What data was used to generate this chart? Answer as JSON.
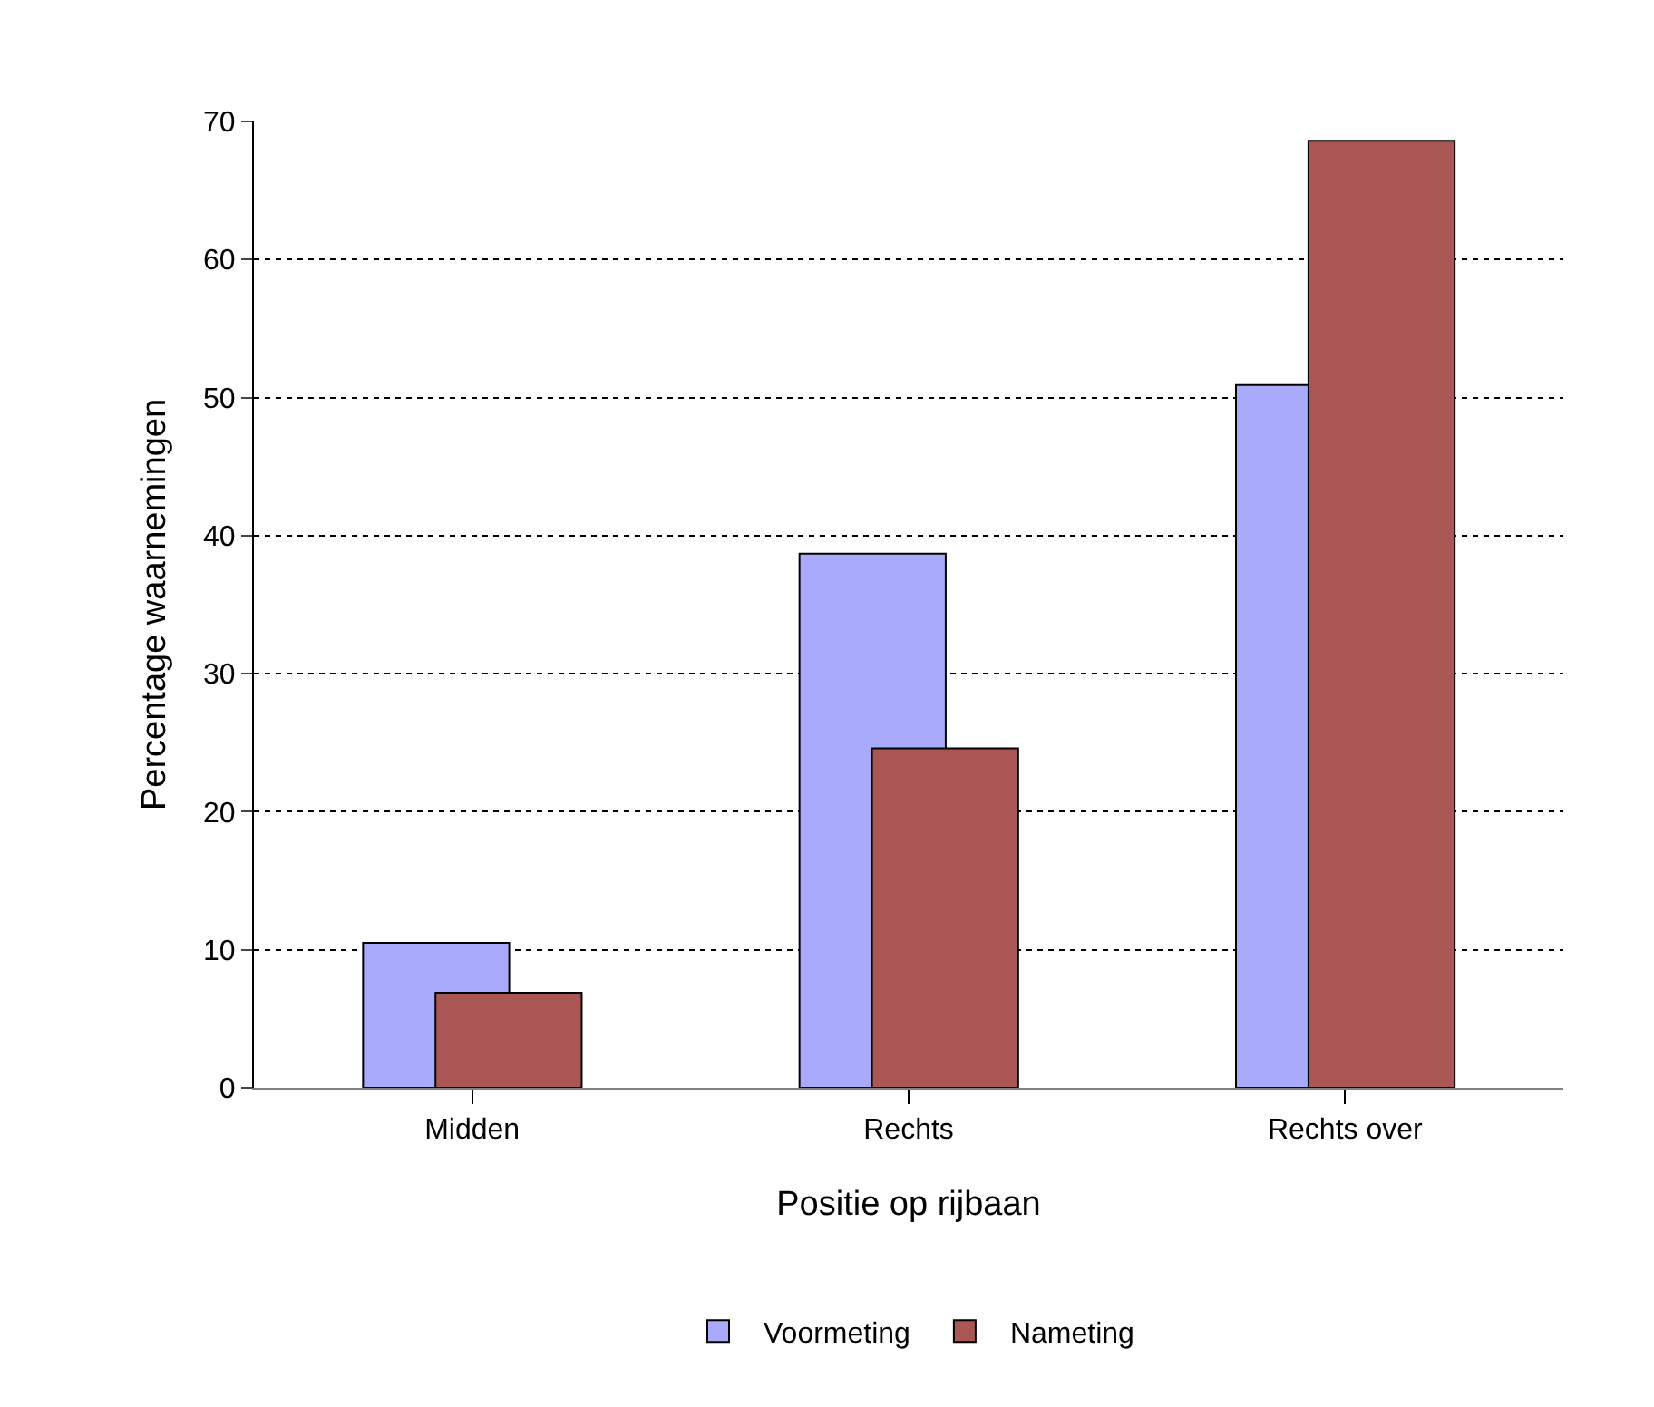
{
  "chart_data": {
    "type": "bar",
    "xlabel": "Positie op rijbaan",
    "ylabel": "Percentage waarnemingen",
    "categories": [
      "Midden",
      "Rechts",
      "Rechts over"
    ],
    "series": [
      {
        "name": "Voormeting",
        "color": "#aaaafc",
        "values": [
          10.5,
          38.7,
          50.9
        ]
      },
      {
        "name": "Nameting",
        "color": "#a95654",
        "values": [
          6.9,
          24.6,
          68.6
        ]
      }
    ],
    "ylim": [
      0,
      70
    ],
    "yticks": [
      0,
      10,
      20,
      30,
      40,
      50,
      60,
      70
    ],
    "grid": "y",
    "legend": "bottom"
  }
}
